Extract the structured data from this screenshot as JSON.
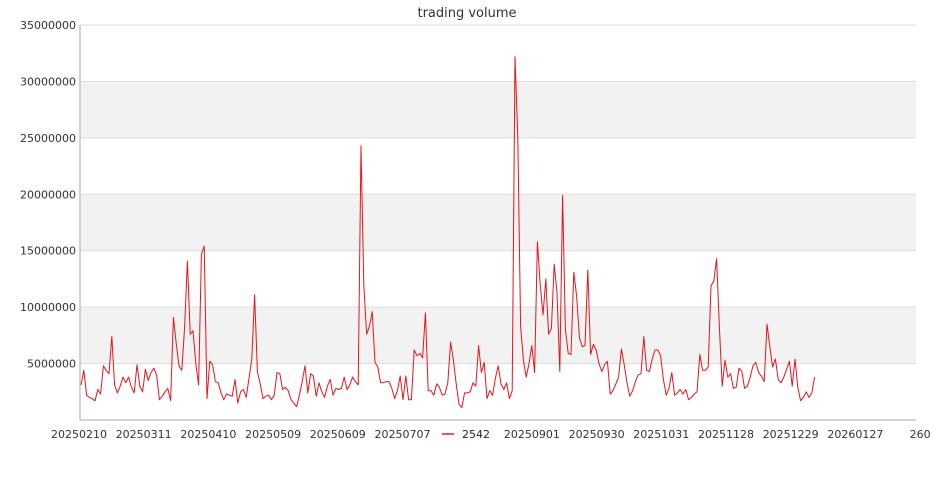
{
  "chart_data": {
    "type": "line",
    "title": "trading volume",
    "xlabel": "",
    "ylabel": "",
    "ylim": [
      0,
      35000000
    ],
    "yticks": [
      5000000,
      10000000,
      15000000,
      20000000,
      25000000,
      30000000,
      35000000
    ],
    "ytick_labels": [
      "5000000",
      "10000000",
      "15000000",
      "20000000",
      "25000000",
      "30000000",
      "35000000"
    ],
    "xtick_labels": [
      "20250210",
      "20250311",
      "20250410",
      "20250509",
      "20250609",
      "20250707",
      "20250804",
      "20250901",
      "20250930",
      "20251031",
      "20251128",
      "20251229",
      "20260127",
      "260"
    ],
    "grid": true,
    "banded_background": true,
    "legend_position": "bottom-center",
    "colors": {
      "series": "#e8141b",
      "grid": "#dddddd",
      "band": "#f2f2f2",
      "axis": "#aaaaaa"
    },
    "series": [
      {
        "name": "2542",
        "values": [
          3100000,
          4400000,
          2200000,
          2000000,
          1900000,
          1700000,
          2700000,
          2300000,
          4800000,
          4400000,
          4100000,
          7400000,
          3100000,
          2400000,
          3000000,
          3800000,
          3300000,
          3800000,
          2900000,
          2400000,
          4900000,
          3000000,
          2500000,
          4500000,
          3500000,
          4200000,
          4600000,
          4000000,
          1800000,
          2100000,
          2500000,
          2800000,
          1700000,
          9100000,
          6800000,
          4800000,
          4400000,
          8200000,
          14100000,
          7600000,
          7900000,
          5000000,
          3100000,
          14700000,
          15400000,
          1900000,
          5200000,
          4900000,
          3400000,
          3300000,
          2400000,
          1800000,
          2300000,
          2200000,
          2100000,
          3600000,
          1500000,
          2500000,
          2700000,
          2000000,
          3700000,
          5400000,
          11100000,
          4300000,
          3200000,
          1900000,
          2100000,
          2200000,
          1800000,
          2200000,
          4200000,
          4100000,
          2700000,
          2900000,
          2600000,
          1800000,
          1500000,
          1200000,
          2200000,
          3400000,
          4800000,
          2400000,
          4100000,
          3900000,
          2100000,
          3300000,
          2500000,
          2000000,
          3000000,
          3600000,
          2200000,
          2800000,
          2700000,
          2800000,
          3800000,
          2700000,
          3100000,
          3800000,
          3400000,
          3100000,
          24300000,
          12000000,
          7600000,
          8300000,
          9600000,
          5100000,
          4700000,
          3300000,
          3300000,
          3400000,
          3400000,
          2800000,
          1900000,
          2600000,
          3900000,
          1800000,
          3900000,
          1800000,
          1800000,
          6200000,
          5700000,
          5900000,
          5500000,
          9500000,
          2600000,
          2600000,
          2200000,
          3200000,
          2900000,
          2200000,
          2300000,
          3300000,
          6900000,
          5300000,
          3200000,
          1400000,
          1100000,
          2400000,
          2400000,
          2500000,
          3300000,
          3000000,
          6600000,
          4200000,
          5100000,
          1900000,
          2600000,
          2200000,
          3700000,
          4800000,
          3200000,
          2700000,
          3300000,
          1900000,
          2600000,
          32200000,
          25000000,
          8300000,
          5300000,
          3800000,
          5000000,
          6600000,
          4200000,
          15800000,
          12000000,
          9300000,
          12500000,
          7600000,
          8100000,
          13800000,
          11300000,
          4300000,
          19900000,
          8000000,
          5900000,
          5800000,
          13100000,
          11000000,
          7300000,
          6500000,
          6600000,
          13300000,
          5800000,
          6700000,
          6200000,
          5000000,
          4300000,
          4900000,
          5200000,
          2300000,
          2600000,
          3200000,
          3800000,
          6300000,
          4900000,
          3300000,
          2100000,
          2600000,
          3400000,
          4000000,
          4100000,
          7400000,
          4400000,
          4300000,
          5400000,
          6200000,
          6200000,
          5700000,
          3600000,
          2200000,
          2800000,
          4200000,
          2200000,
          2400000,
          2700000,
          2300000,
          2700000,
          1800000,
          2000000,
          2300000,
          2500000,
          5800000,
          4400000,
          4400000,
          4700000,
          11900000,
          12300000,
          14300000,
          8200000,
          3000000,
          5300000,
          3800000,
          4100000,
          2800000,
          2900000,
          4600000,
          4300000,
          2800000,
          3000000,
          3800000,
          4800000,
          5100000,
          4200000,
          3900000,
          3400000,
          8500000,
          6500000,
          4700000,
          5400000,
          3600000,
          3300000,
          3800000,
          4500000,
          5200000,
          3000000,
          5400000,
          2900000,
          1700000,
          2000000,
          2500000,
          2000000,
          2400000,
          3800000
        ]
      }
    ]
  }
}
